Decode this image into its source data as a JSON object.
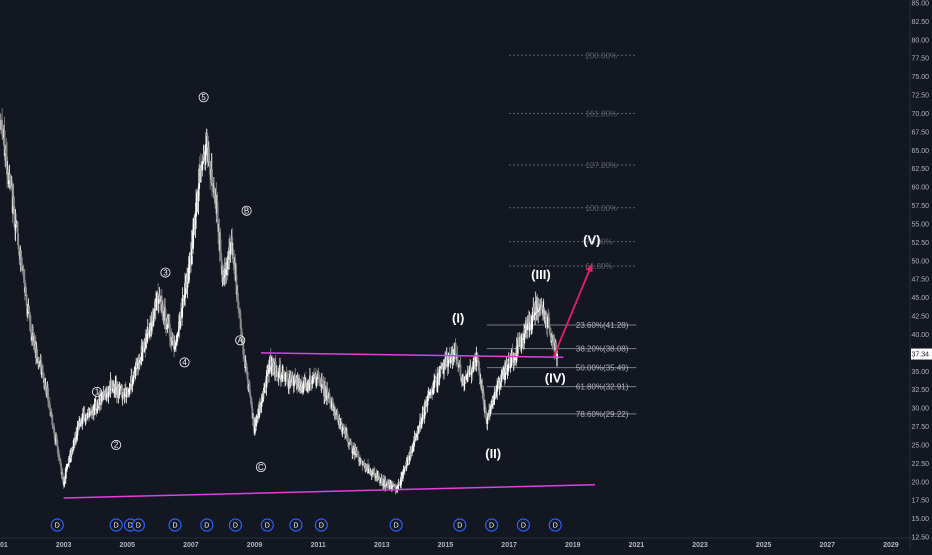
{
  "chart_data": {
    "type": "candlestick",
    "price_axis": {
      "ylim": [
        12.5,
        85.0
      ],
      "ticks": [
        "85.00",
        "82.50",
        "80.00",
        "77.50",
        "75.00",
        "72.50",
        "70.00",
        "67.50",
        "65.00",
        "62.50",
        "60.00",
        "57.50",
        "55.00",
        "52.50",
        "50.00",
        "47.50",
        "45.00",
        "42.50",
        "40.00",
        "37.50",
        "35.00",
        "32.50",
        "30.00",
        "27.50",
        "25.00",
        "22.50",
        "20.00",
        "17.50",
        "15.00",
        "12.50"
      ],
      "last_price_label": "37.34",
      "last_price": 37.34
    },
    "time_axis": {
      "xlim": [
        2001.0,
        2029.6
      ],
      "ticks": [
        "2001",
        "2003",
        "2005",
        "2007",
        "2009",
        "2011",
        "2013",
        "2015",
        "2017",
        "2019",
        "2021",
        "2023",
        "2025",
        "2027",
        "2029"
      ]
    },
    "price_series": {
      "x": [
        2001.0,
        2001.5,
        2002.0,
        2002.5,
        2003.0,
        2003.5,
        2004.0,
        2004.5,
        2005.0,
        2005.5,
        2006.0,
        2006.5,
        2007.0,
        2007.3,
        2007.5,
        2007.8,
        2008.0,
        2008.3,
        2008.6,
        2009.0,
        2009.5,
        2010.0,
        2010.5,
        2011.0,
        2011.5,
        2012.0,
        2012.5,
        2013.0,
        2013.5,
        2014.0,
        2014.5,
        2015.0,
        2015.3,
        2015.6,
        2016.0,
        2016.3,
        2016.6,
        2017.0,
        2017.5,
        2017.9,
        2018.2,
        2018.5
      ],
      "y": [
        70,
        55,
        40,
        32,
        20,
        28,
        30,
        33,
        32,
        38,
        45,
        38,
        50,
        62,
        66,
        58,
        48,
        52,
        40,
        27,
        36,
        34,
        33,
        34,
        30,
        25,
        22,
        20,
        19,
        25,
        32,
        36,
        38,
        33,
        37,
        28,
        32,
        36,
        40,
        44,
        42,
        37.34
      ]
    },
    "fibonacci_levels": [
      {
        "label": "200.00%",
        "value": 77.9,
        "style": "ext"
      },
      {
        "label": "161.80%",
        "value": 70.0,
        "style": "ext"
      },
      {
        "label": "127.20%",
        "value": 63.0,
        "style": "ext"
      },
      {
        "label": "100.00%",
        "value": 57.2,
        "style": "ext"
      },
      {
        "label": "78.00%",
        "value": 52.6,
        "style": "ext"
      },
      {
        "label": "61.80%",
        "value": 49.3,
        "style": "ext"
      },
      {
        "label": "23.60%(41.28)",
        "value": 41.28,
        "style": "ret"
      },
      {
        "label": "38.20%(38.08)",
        "value": 38.08,
        "style": "ret"
      },
      {
        "label": "50.00%(35.49)",
        "value": 35.49,
        "style": "ret"
      },
      {
        "label": "61.80%(32.91)",
        "value": 32.91,
        "style": "ret"
      },
      {
        "label": "78.60%(29.22)",
        "value": 29.22,
        "style": "ret"
      }
    ],
    "trendlines": [
      {
        "x": [
          2009.2,
          2018.7
        ],
        "y": [
          37.5,
          36.9
        ],
        "color": "#e040e0"
      },
      {
        "x": [
          2003.0,
          2019.7
        ],
        "y": [
          17.8,
          19.6
        ],
        "color": "#e040e0"
      }
    ],
    "arrow": {
      "x": [
        2018.4,
        2019.6
      ],
      "y": [
        37.0,
        49.5
      ],
      "color": "#e91e63"
    },
    "wave_labels": [
      {
        "text": "(I)",
        "x": 2015.4,
        "y": 41.6
      },
      {
        "text": "(II)",
        "x": 2016.5,
        "y": 23.2
      },
      {
        "text": "(III)",
        "x": 2018.0,
        "y": 47.5
      },
      {
        "text": "(IV)",
        "x": 2018.45,
        "y": 33.5
      },
      {
        "text": "(V)",
        "x": 2019.6,
        "y": 52.2
      }
    ],
    "circled_labels": [
      {
        "text": "1",
        "x": 2004.05,
        "y": 32.2
      },
      {
        "text": "2",
        "x": 2004.65,
        "y": 25.0
      },
      {
        "text": "3",
        "x": 2006.2,
        "y": 48.4
      },
      {
        "text": "4",
        "x": 2006.8,
        "y": 36.2
      },
      {
        "text": "5",
        "x": 2007.4,
        "y": 72.2
      },
      {
        "text": "A",
        "x": 2008.55,
        "y": 39.2
      },
      {
        "text": "B",
        "x": 2008.75,
        "y": 56.8
      },
      {
        "text": "C",
        "x": 2009.2,
        "y": 22.0
      }
    ],
    "events": {
      "label": "D",
      "x": [
        2002.8,
        2004.65,
        2005.1,
        2005.35,
        2006.5,
        2007.5,
        2008.4,
        2009.4,
        2010.3,
        2011.1,
        2013.45,
        2015.45,
        2016.45,
        2017.45,
        2018.45
      ]
    },
    "colors": {
      "background": "#131722",
      "candle_up": "#ffffff",
      "candle_down": "#8a8a8a",
      "fib_ext": "#5d606b",
      "fib_ret": "#787b86",
      "trendline": "#e040e0",
      "arrow": "#e91e63",
      "event_marker": "#2962ff",
      "price_tag_bg": "#ffffff",
      "price_tag_text": "#131722"
    }
  }
}
